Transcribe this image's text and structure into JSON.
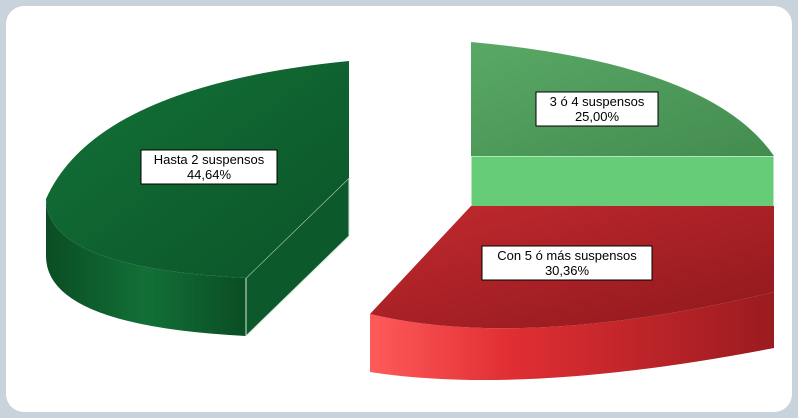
{
  "chart_data": {
    "type": "pie",
    "style": "3d-exploded",
    "slices": [
      {
        "label": "Hasta 2 suspensos",
        "value": 44.64,
        "value_text": "44,64%",
        "color": "#0f6330"
      },
      {
        "label": "3 ó 4 suspensos",
        "value": 25.0,
        "value_text": "25,00%",
        "color": "#4e9e5b"
      },
      {
        "label": "Con 5 ó más suspensos",
        "value": 30.36,
        "value_text": "30,36%",
        "color": "#b42227"
      }
    ],
    "colors": {
      "background": "#c9d3dc",
      "panel": "#ffffff",
      "slice_1_side": "#0d5a2b",
      "slice_2_side": "#66cc77",
      "slice_3_side": "#d9363b"
    }
  }
}
